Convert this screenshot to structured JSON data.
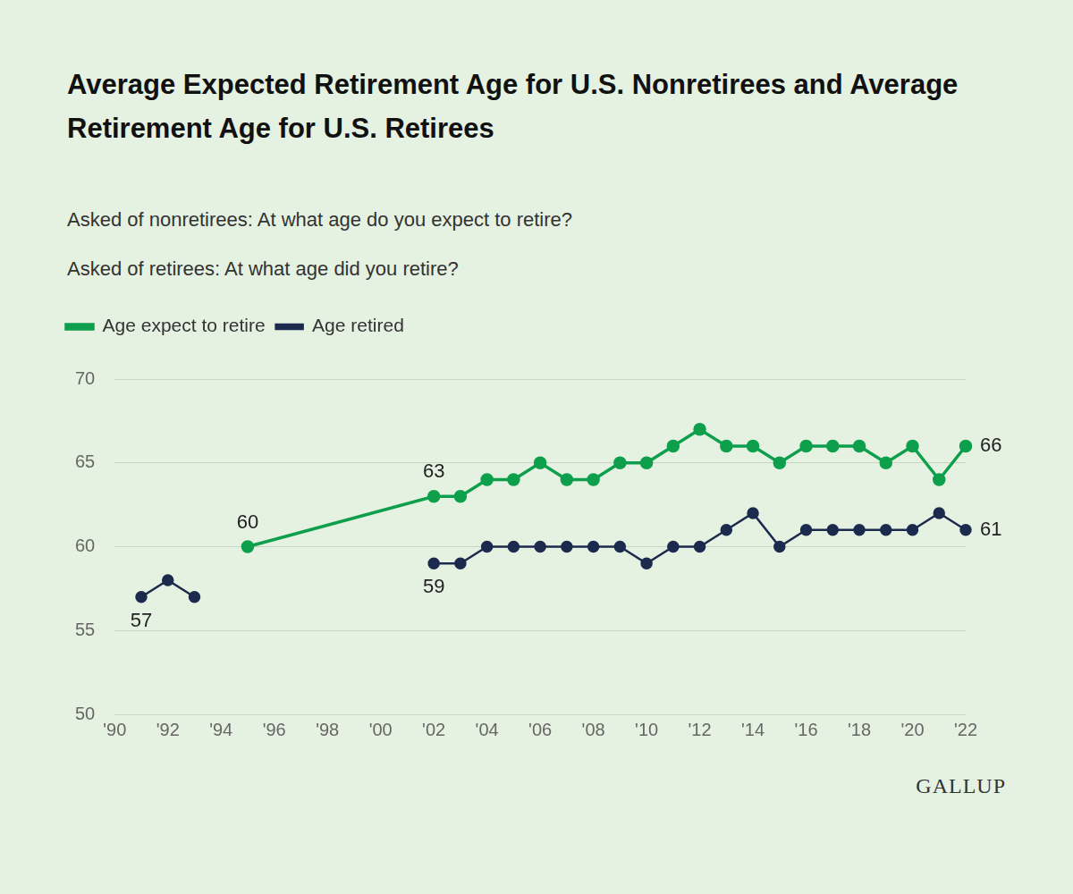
{
  "chart_data": {
    "type": "line",
    "title": "Average Expected Retirement Age for U.S. Nonretirees and Average Retirement Age for U.S. Retirees",
    "subtitle": [
      "Asked of nonretirees: At what age do you expect to retire?",
      "Asked of retirees: At what age did you retire?"
    ],
    "source": "GALLUP",
    "x": [
      1991,
      1992,
      1993,
      1995,
      2002,
      2003,
      2004,
      2005,
      2006,
      2007,
      2008,
      2009,
      2010,
      2011,
      2012,
      2013,
      2014,
      2015,
      2016,
      2017,
      2018,
      2019,
      2020,
      2021,
      2022
    ],
    "series": [
      {
        "name": "Age expect to retire",
        "color": "#0e9f4c",
        "marker": "circle",
        "line_style": "solid",
        "values": [
          null,
          null,
          null,
          60,
          63,
          63,
          64,
          64,
          65,
          64,
          64,
          65,
          65,
          66,
          67,
          66,
          66,
          65,
          66,
          66,
          66,
          65,
          66,
          64,
          66
        ]
      },
      {
        "name": "Age retired",
        "color": "#1c2a4e",
        "marker": "circle",
        "line_style": "solid",
        "values": [
          57,
          58,
          57,
          null,
          59,
          59,
          60,
          60,
          60,
          60,
          60,
          60,
          59,
          60,
          60,
          61,
          62,
          60,
          61,
          61,
          61,
          61,
          61,
          62,
          61
        ]
      }
    ],
    "xlim": [
      1990,
      2022
    ],
    "xticks": [
      {
        "value": 1990,
        "label": "'90"
      },
      {
        "value": 1992,
        "label": "'92"
      },
      {
        "value": 1994,
        "label": "'94"
      },
      {
        "value": 1996,
        "label": "'96"
      },
      {
        "value": 1998,
        "label": "'98"
      },
      {
        "value": 2000,
        "label": "'00"
      },
      {
        "value": 2002,
        "label": "'02"
      },
      {
        "value": 2004,
        "label": "'04"
      },
      {
        "value": 2006,
        "label": "'06"
      },
      {
        "value": 2008,
        "label": "'08"
      },
      {
        "value": 2010,
        "label": "'10"
      },
      {
        "value": 2012,
        "label": "'12"
      },
      {
        "value": 2014,
        "label": "'14"
      },
      {
        "value": 2016,
        "label": "'16"
      },
      {
        "value": 2018,
        "label": "'18"
      },
      {
        "value": 2020,
        "label": "'20"
      },
      {
        "value": 2022,
        "label": "'22"
      }
    ],
    "ylim": [
      50,
      70
    ],
    "yticks": [
      50,
      55,
      60,
      65,
      70
    ],
    "grid": true,
    "legend": "top-left",
    "annotations": [
      {
        "series": "Age retired",
        "x": 1991,
        "text": "57"
      },
      {
        "series": "Age expect to retire",
        "x": 1995,
        "text": "60"
      },
      {
        "series": "Age expect to retire",
        "x": 2002,
        "text": "63"
      },
      {
        "series": "Age retired",
        "x": 2002,
        "text": "59"
      },
      {
        "series": "Age expect to retire",
        "x": 2022,
        "text": "66"
      },
      {
        "series": "Age retired",
        "x": 2022,
        "text": "61"
      }
    ]
  }
}
